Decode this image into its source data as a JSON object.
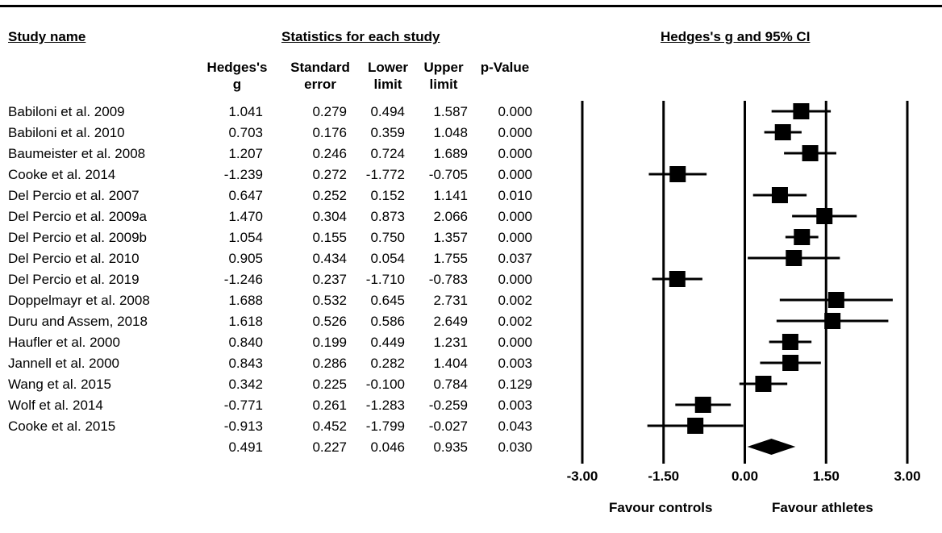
{
  "headers": {
    "study_name": "Study name",
    "statistics": "Statistics for each study",
    "plot_title": "Hedges's g and 95% CI",
    "col_g": [
      "Hedges's",
      "g"
    ],
    "col_se": [
      "Standard",
      "error"
    ],
    "col_lower": [
      "Lower",
      "limit"
    ],
    "col_upper": [
      "Upper",
      "limit"
    ],
    "col_p": [
      "",
      "p-Value"
    ]
  },
  "rows": [
    {
      "name": "Babiloni et al. 2009",
      "g": "1.041",
      "se": "0.279",
      "lower": "0.494",
      "upper": "1.587",
      "p": "0.000"
    },
    {
      "name": "Babiloni et al. 2010",
      "g": "0.703",
      "se": "0.176",
      "lower": "0.359",
      "upper": "1.048",
      "p": "0.000"
    },
    {
      "name": "Baumeister et al. 2008",
      "g": "1.207",
      "se": "0.246",
      "lower": "0.724",
      "upper": "1.689",
      "p": "0.000"
    },
    {
      "name": "Cooke et al. 2014",
      "g": "-1.239",
      "se": "0.272",
      "lower": "-1.772",
      "upper": "-0.705",
      "p": "0.000"
    },
    {
      "name": "Del Percio et al. 2007",
      "g": "0.647",
      "se": "0.252",
      "lower": "0.152",
      "upper": "1.141",
      "p": "0.010"
    },
    {
      "name": "Del Percio et al. 2009a",
      "g": "1.470",
      "se": "0.304",
      "lower": "0.873",
      "upper": "2.066",
      "p": "0.000"
    },
    {
      "name": "Del Percio et al. 2009b",
      "g": "1.054",
      "se": "0.155",
      "lower": "0.750",
      "upper": "1.357",
      "p": "0.000"
    },
    {
      "name": "Del Percio et al. 2010",
      "g": "0.905",
      "se": "0.434",
      "lower": "0.054",
      "upper": "1.755",
      "p": "0.037"
    },
    {
      "name": "Del Percio et al. 2019",
      "g": "-1.246",
      "se": "0.237",
      "lower": "-1.710",
      "upper": "-0.783",
      "p": "0.000"
    },
    {
      "name": "Doppelmayr et al. 2008",
      "g": "1.688",
      "se": "0.532",
      "lower": "0.645",
      "upper": "2.731",
      "p": "0.002"
    },
    {
      "name": "Duru and Assem, 2018",
      "g": "1.618",
      "se": "0.526",
      "lower": "0.586",
      "upper": "2.649",
      "p": "0.002"
    },
    {
      "name": "Haufler et al. 2000",
      "g": "0.840",
      "se": "0.199",
      "lower": "0.449",
      "upper": "1.231",
      "p": "0.000"
    },
    {
      "name": "Jannell et al. 2000",
      "g": "0.843",
      "se": "0.286",
      "lower": "0.282",
      "upper": "1.404",
      "p": "0.003"
    },
    {
      "name": "Wang et al. 2015",
      "g": "0.342",
      "se": "0.225",
      "lower": "-0.100",
      "upper": "0.784",
      "p": "0.129"
    },
    {
      "name": "Wolf et al. 2014",
      "g": "-0.771",
      "se": "0.261",
      "lower": "-1.283",
      "upper": "-0.259",
      "p": "0.003"
    },
    {
      "name": "Cooke et al. 2015",
      "g": "-0.913",
      "se": "0.452",
      "lower": "-1.799",
      "upper": "-0.027",
      "p": "0.043"
    },
    {
      "name": "",
      "g": "0.491",
      "se": "0.227",
      "lower": "0.046",
      "upper": "0.935",
      "p": "0.030"
    }
  ],
  "axis": {
    "labels": [
      "Favour controls",
      "Favour athletes"
    ]
  },
  "chart_data": {
    "type": "forest",
    "title": "Hedges's g and 95% CI",
    "x_ticks": [
      "-3.00",
      "-1.50",
      "0.00",
      "1.50",
      "3.00"
    ],
    "tick_values": [
      -3,
      -1.5,
      0,
      1.5,
      3
    ],
    "xlim": [
      -3,
      3
    ],
    "studies": [
      {
        "name": "Babiloni et al. 2009",
        "g": 1.041,
        "lower": 0.494,
        "upper": 1.587
      },
      {
        "name": "Babiloni et al. 2010",
        "g": 0.703,
        "lower": 0.359,
        "upper": 1.048
      },
      {
        "name": "Baumeister et al. 2008",
        "g": 1.207,
        "lower": 0.724,
        "upper": 1.689
      },
      {
        "name": "Cooke et al. 2014",
        "g": -1.239,
        "lower": -1.772,
        "upper": -0.705
      },
      {
        "name": "Del Percio et al. 2007",
        "g": 0.647,
        "lower": 0.152,
        "upper": 1.141
      },
      {
        "name": "Del Percio et al. 2009a",
        "g": 1.47,
        "lower": 0.873,
        "upper": 2.066
      },
      {
        "name": "Del Percio et al. 2009b",
        "g": 1.054,
        "lower": 0.75,
        "upper": 1.357
      },
      {
        "name": "Del Percio et al. 2010",
        "g": 0.905,
        "lower": 0.054,
        "upper": 1.755
      },
      {
        "name": "Del Percio et al. 2019",
        "g": -1.246,
        "lower": -1.71,
        "upper": -0.783
      },
      {
        "name": "Doppelmayr et al. 2008",
        "g": 1.688,
        "lower": 0.645,
        "upper": 2.731
      },
      {
        "name": "Duru and Assem, 2018",
        "g": 1.618,
        "lower": 0.586,
        "upper": 2.649
      },
      {
        "name": "Haufler et al. 2000",
        "g": 0.84,
        "lower": 0.449,
        "upper": 1.231
      },
      {
        "name": "Jannell et al. 2000",
        "g": 0.843,
        "lower": 0.282,
        "upper": 1.404
      },
      {
        "name": "Wang et al. 2015",
        "g": 0.342,
        "lower": -0.1,
        "upper": 0.784
      },
      {
        "name": "Wolf et al. 2014",
        "g": -0.771,
        "lower": -1.283,
        "upper": -0.259
      },
      {
        "name": "Cooke et al. 2015",
        "g": -0.913,
        "lower": -1.799,
        "upper": -0.027
      }
    ],
    "summary": {
      "g": 0.491,
      "lower": 0.046,
      "upper": 0.935
    }
  }
}
